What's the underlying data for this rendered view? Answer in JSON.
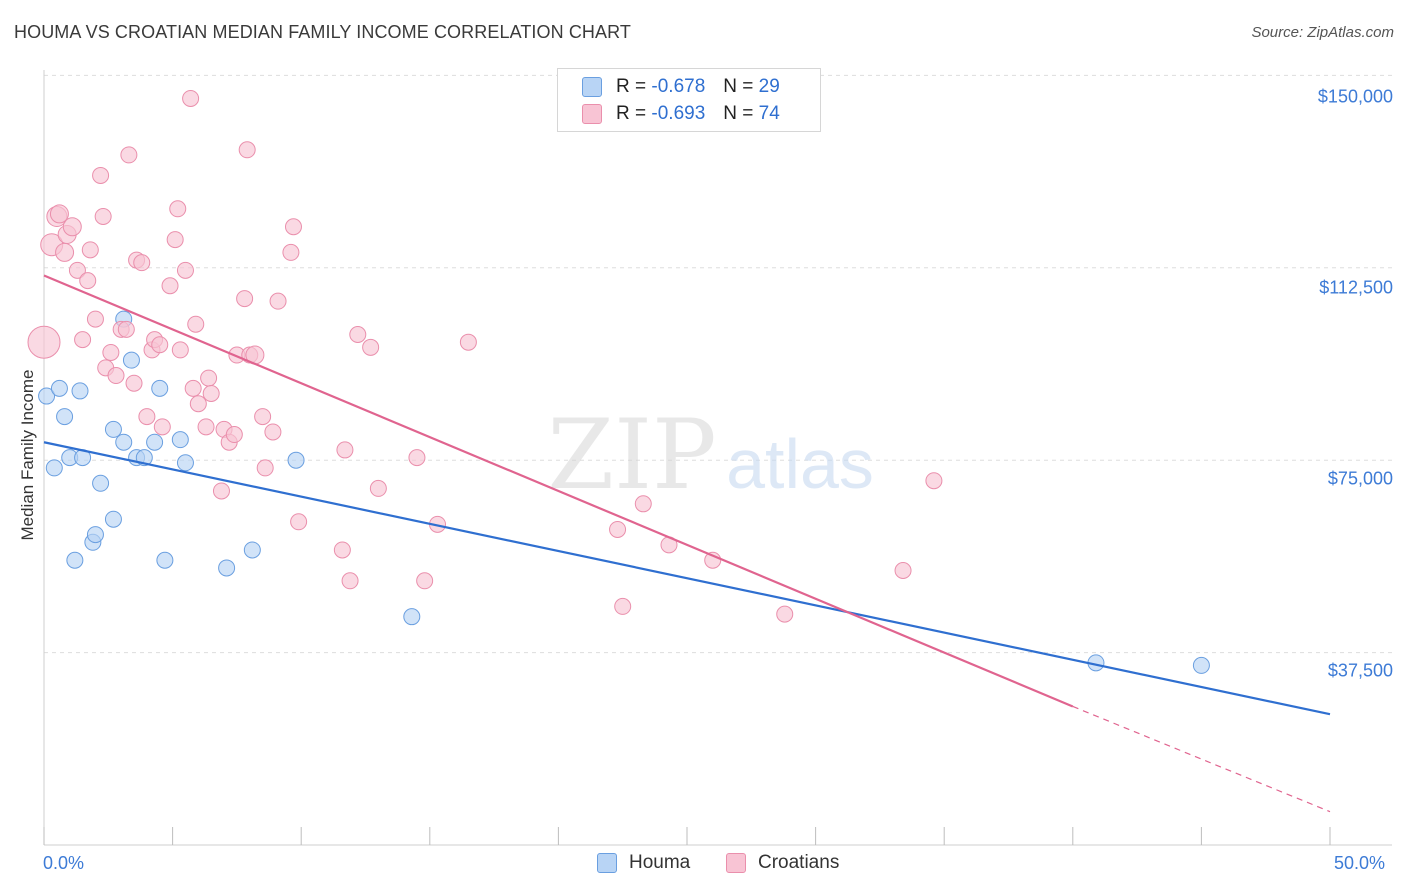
{
  "title": "HOUMA VS CROATIAN MEDIAN FAMILY INCOME CORRELATION CHART",
  "source": "Source: ZipAtlas.com",
  "watermark": {
    "zip": "ZIP",
    "atlas": "atlas"
  },
  "colors": {
    "houma_fill": "#b8d4f5",
    "houma_stroke": "#6a9fe0",
    "houma_line": "#2f6fd0",
    "croatian_fill": "#f8c4d4",
    "croatian_stroke": "#ea8fac",
    "croatian_line": "#e0648f",
    "axis_text": "#3d7bd6",
    "grid": "#dddddd"
  },
  "legend": {
    "rows": [
      {
        "r_label": "R =",
        "r_value": "-0.678",
        "n_label": "N =",
        "n_value": "29"
      },
      {
        "r_label": "R =",
        "r_value": "-0.693",
        "n_label": "N =",
        "n_value": "74"
      }
    ]
  },
  "bottom_legend": {
    "houma": "Houma",
    "croatians": "Croatians"
  },
  "chart_data": {
    "type": "scatter",
    "title": "HOUMA VS CROATIAN MEDIAN FAMILY INCOME CORRELATION CHART",
    "xlabel": "",
    "ylabel": "Median Family Income",
    "xlim": [
      0,
      50
    ],
    "ylim": [
      0,
      153000
    ],
    "x_tick_labels": [
      "0.0%",
      "50.0%"
    ],
    "y_ticks": [
      {
        "value": 37500,
        "label": "$37,500"
      },
      {
        "value": 75000,
        "label": "$75,000"
      },
      {
        "value": 112500,
        "label": "$112,500"
      },
      {
        "value": 150000,
        "label": "$150,000"
      }
    ],
    "grid": true,
    "legend_position": "top-center",
    "series": [
      {
        "name": "Houma",
        "r": -0.678,
        "n": 29,
        "trend": {
          "x": [
            0,
            50
          ],
          "y": [
            78500,
            25500
          ]
        },
        "points": [
          {
            "x": 0.1,
            "y": 87500,
            "s": 7
          },
          {
            "x": 0.4,
            "y": 73500,
            "s": 7
          },
          {
            "x": 0.6,
            "y": 89000,
            "s": 7
          },
          {
            "x": 0.8,
            "y": 83500,
            "s": 7
          },
          {
            "x": 1.0,
            "y": 75500,
            "s": 7
          },
          {
            "x": 1.2,
            "y": 55500,
            "s": 7
          },
          {
            "x": 1.4,
            "y": 88500,
            "s": 7
          },
          {
            "x": 1.5,
            "y": 75500,
            "s": 7
          },
          {
            "x": 1.9,
            "y": 59000,
            "s": 7
          },
          {
            "x": 2.0,
            "y": 60500,
            "s": 7
          },
          {
            "x": 2.2,
            "y": 70500,
            "s": 7
          },
          {
            "x": 2.7,
            "y": 63500,
            "s": 7
          },
          {
            "x": 2.7,
            "y": 81000,
            "s": 7
          },
          {
            "x": 3.1,
            "y": 78500,
            "s": 7
          },
          {
            "x": 3.1,
            "y": 102500,
            "s": 7
          },
          {
            "x": 3.4,
            "y": 94500,
            "s": 7
          },
          {
            "x": 3.6,
            "y": 75500,
            "s": 7
          },
          {
            "x": 3.9,
            "y": 75500,
            "s": 7
          },
          {
            "x": 4.3,
            "y": 78500,
            "s": 7
          },
          {
            "x": 4.5,
            "y": 89000,
            "s": 7
          },
          {
            "x": 4.7,
            "y": 55500,
            "s": 7
          },
          {
            "x": 5.3,
            "y": 79000,
            "s": 7
          },
          {
            "x": 5.5,
            "y": 74500,
            "s": 7
          },
          {
            "x": 7.1,
            "y": 54000,
            "s": 7
          },
          {
            "x": 8.1,
            "y": 57500,
            "s": 7
          },
          {
            "x": 9.8,
            "y": 75000,
            "s": 7
          },
          {
            "x": 14.3,
            "y": 44500,
            "s": 7
          },
          {
            "x": 40.9,
            "y": 35500,
            "s": 7
          },
          {
            "x": 45.0,
            "y": 35000,
            "s": 7
          }
        ]
      },
      {
        "name": "Croatians",
        "r": -0.693,
        "n": 74,
        "trend": {
          "x": [
            0,
            40
          ],
          "y": [
            111000,
            27000
          ],
          "dashed_to": {
            "x": 50,
            "y": 6500
          }
        },
        "points": [
          {
            "x": 0.0,
            "y": 98000,
            "s": 15
          },
          {
            "x": 0.3,
            "y": 117000,
            "s": 10
          },
          {
            "x": 0.5,
            "y": 122500,
            "s": 9
          },
          {
            "x": 0.6,
            "y": 123000,
            "s": 8
          },
          {
            "x": 0.8,
            "y": 115500,
            "s": 8
          },
          {
            "x": 0.9,
            "y": 119000,
            "s": 8
          },
          {
            "x": 1.1,
            "y": 120500,
            "s": 8
          },
          {
            "x": 1.3,
            "y": 112000,
            "s": 7
          },
          {
            "x": 1.5,
            "y": 98500,
            "s": 7
          },
          {
            "x": 1.7,
            "y": 110000,
            "s": 7
          },
          {
            "x": 1.8,
            "y": 116000,
            "s": 7
          },
          {
            "x": 2.0,
            "y": 102500,
            "s": 7
          },
          {
            "x": 2.2,
            "y": 130500,
            "s": 7
          },
          {
            "x": 2.3,
            "y": 122500,
            "s": 7
          },
          {
            "x": 2.4,
            "y": 93000,
            "s": 7
          },
          {
            "x": 2.6,
            "y": 96000,
            "s": 7
          },
          {
            "x": 2.8,
            "y": 91500,
            "s": 7
          },
          {
            "x": 3.0,
            "y": 100500,
            "s": 7
          },
          {
            "x": 3.2,
            "y": 100500,
            "s": 7
          },
          {
            "x": 3.3,
            "y": 134500,
            "s": 7
          },
          {
            "x": 3.5,
            "y": 90000,
            "s": 7
          },
          {
            "x": 3.6,
            "y": 114000,
            "s": 7
          },
          {
            "x": 3.8,
            "y": 113500,
            "s": 7
          },
          {
            "x": 4.0,
            "y": 83500,
            "s": 7
          },
          {
            "x": 4.2,
            "y": 96500,
            "s": 7
          },
          {
            "x": 4.3,
            "y": 98500,
            "s": 7
          },
          {
            "x": 4.5,
            "y": 97500,
            "s": 7
          },
          {
            "x": 4.6,
            "y": 81500,
            "s": 7
          },
          {
            "x": 4.9,
            "y": 109000,
            "s": 7
          },
          {
            "x": 5.1,
            "y": 118000,
            "s": 7
          },
          {
            "x": 5.2,
            "y": 124000,
            "s": 7
          },
          {
            "x": 5.3,
            "y": 96500,
            "s": 7
          },
          {
            "x": 5.5,
            "y": 112000,
            "s": 7
          },
          {
            "x": 5.7,
            "y": 145500,
            "s": 7
          },
          {
            "x": 5.8,
            "y": 89000,
            "s": 7
          },
          {
            "x": 5.9,
            "y": 101500,
            "s": 7
          },
          {
            "x": 6.0,
            "y": 86000,
            "s": 7
          },
          {
            "x": 6.3,
            "y": 81500,
            "s": 7
          },
          {
            "x": 6.4,
            "y": 91000,
            "s": 7
          },
          {
            "x": 6.5,
            "y": 88000,
            "s": 7
          },
          {
            "x": 6.9,
            "y": 69000,
            "s": 7
          },
          {
            "x": 7.0,
            "y": 81000,
            "s": 7
          },
          {
            "x": 7.2,
            "y": 78500,
            "s": 7
          },
          {
            "x": 7.4,
            "y": 80000,
            "s": 7
          },
          {
            "x": 7.5,
            "y": 95500,
            "s": 7
          },
          {
            "x": 7.8,
            "y": 106500,
            "s": 7
          },
          {
            "x": 7.9,
            "y": 135500,
            "s": 7
          },
          {
            "x": 8.0,
            "y": 95500,
            "s": 7
          },
          {
            "x": 8.2,
            "y": 95500,
            "s": 8
          },
          {
            "x": 8.5,
            "y": 83500,
            "s": 7
          },
          {
            "x": 8.6,
            "y": 73500,
            "s": 7
          },
          {
            "x": 8.9,
            "y": 80500,
            "s": 7
          },
          {
            "x": 9.1,
            "y": 106000,
            "s": 7
          },
          {
            "x": 9.6,
            "y": 115500,
            "s": 7
          },
          {
            "x": 9.7,
            "y": 120500,
            "s": 7
          },
          {
            "x": 9.9,
            "y": 63000,
            "s": 7
          },
          {
            "x": 11.6,
            "y": 57500,
            "s": 7
          },
          {
            "x": 11.7,
            "y": 77000,
            "s": 7
          },
          {
            "x": 11.9,
            "y": 51500,
            "s": 7
          },
          {
            "x": 12.2,
            "y": 99500,
            "s": 7
          },
          {
            "x": 12.7,
            "y": 97000,
            "s": 7
          },
          {
            "x": 13.0,
            "y": 69500,
            "s": 7
          },
          {
            "x": 14.5,
            "y": 75500,
            "s": 7
          },
          {
            "x": 14.8,
            "y": 51500,
            "s": 7
          },
          {
            "x": 15.3,
            "y": 62500,
            "s": 7
          },
          {
            "x": 16.5,
            "y": 98000,
            "s": 7
          },
          {
            "x": 22.3,
            "y": 61500,
            "s": 7
          },
          {
            "x": 22.5,
            "y": 46500,
            "s": 7
          },
          {
            "x": 23.3,
            "y": 66500,
            "s": 7
          },
          {
            "x": 24.3,
            "y": 58500,
            "s": 7
          },
          {
            "x": 26.0,
            "y": 55500,
            "s": 7
          },
          {
            "x": 28.8,
            "y": 45000,
            "s": 7
          },
          {
            "x": 33.4,
            "y": 53500,
            "s": 7
          },
          {
            "x": 34.6,
            "y": 71000,
            "s": 7
          }
        ]
      }
    ]
  }
}
